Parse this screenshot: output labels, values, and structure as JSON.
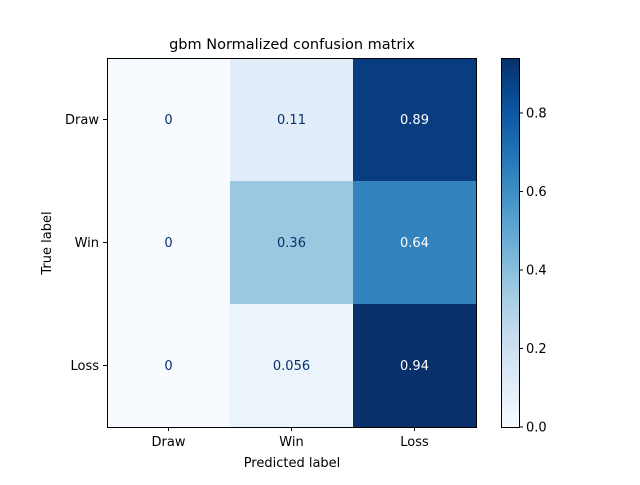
{
  "chart_data": {
    "type": "heatmap",
    "title": "gbm Normalized confusion matrix",
    "xlabel": "Predicted label",
    "ylabel": "True label",
    "x_categories": [
      "Draw",
      "Win",
      "Loss"
    ],
    "y_categories": [
      "Draw",
      "Win",
      "Loss"
    ],
    "values": [
      [
        0,
        0.11,
        0.89
      ],
      [
        0,
        0.36,
        0.64
      ],
      [
        0,
        0.056,
        0.94
      ]
    ],
    "cell_labels": [
      [
        "0",
        "0.11",
        "0.89"
      ],
      [
        "0",
        "0.36",
        "0.64"
      ],
      [
        "0",
        "0.056",
        "0.94"
      ]
    ],
    "colorbar": {
      "range": [
        0,
        0.94
      ],
      "ticks": [
        0.0,
        0.2,
        0.4,
        0.6,
        0.8
      ],
      "tick_labels": [
        "0.0",
        "0.2",
        "0.4",
        "0.6",
        "0.8"
      ]
    },
    "colormap": "Blues",
    "grid": false
  }
}
